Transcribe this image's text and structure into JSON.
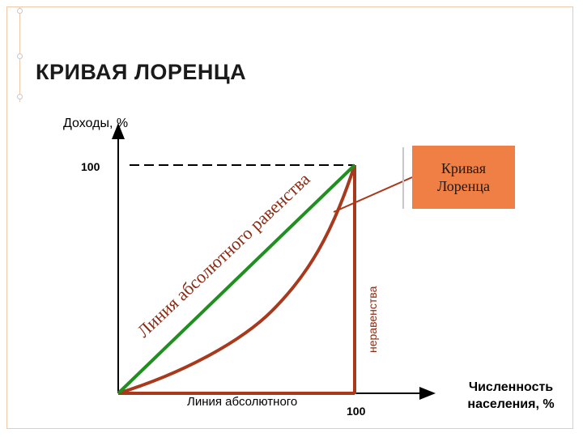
{
  "title": "КРИВАЯ ЛОРЕНЦА",
  "axes": {
    "y_label": "Доходы, %",
    "y_tick": "100",
    "x_tick": "100",
    "x_label_line1": "Численность",
    "x_label_line2": "населения, %"
  },
  "labels": {
    "equality_line": "Линия абсолютного равенства",
    "inequality_line": "неравенства",
    "bottom_caption": "Линия абсолютного",
    "callout_line1": "Кривая",
    "callout_line2": "Лоренца"
  },
  "colors": {
    "equality_line": "#1f8f1f",
    "lorenz_curve": "#a8391c",
    "callout_fill": "#ef7f45",
    "frame": "#f2c9a8"
  }
}
